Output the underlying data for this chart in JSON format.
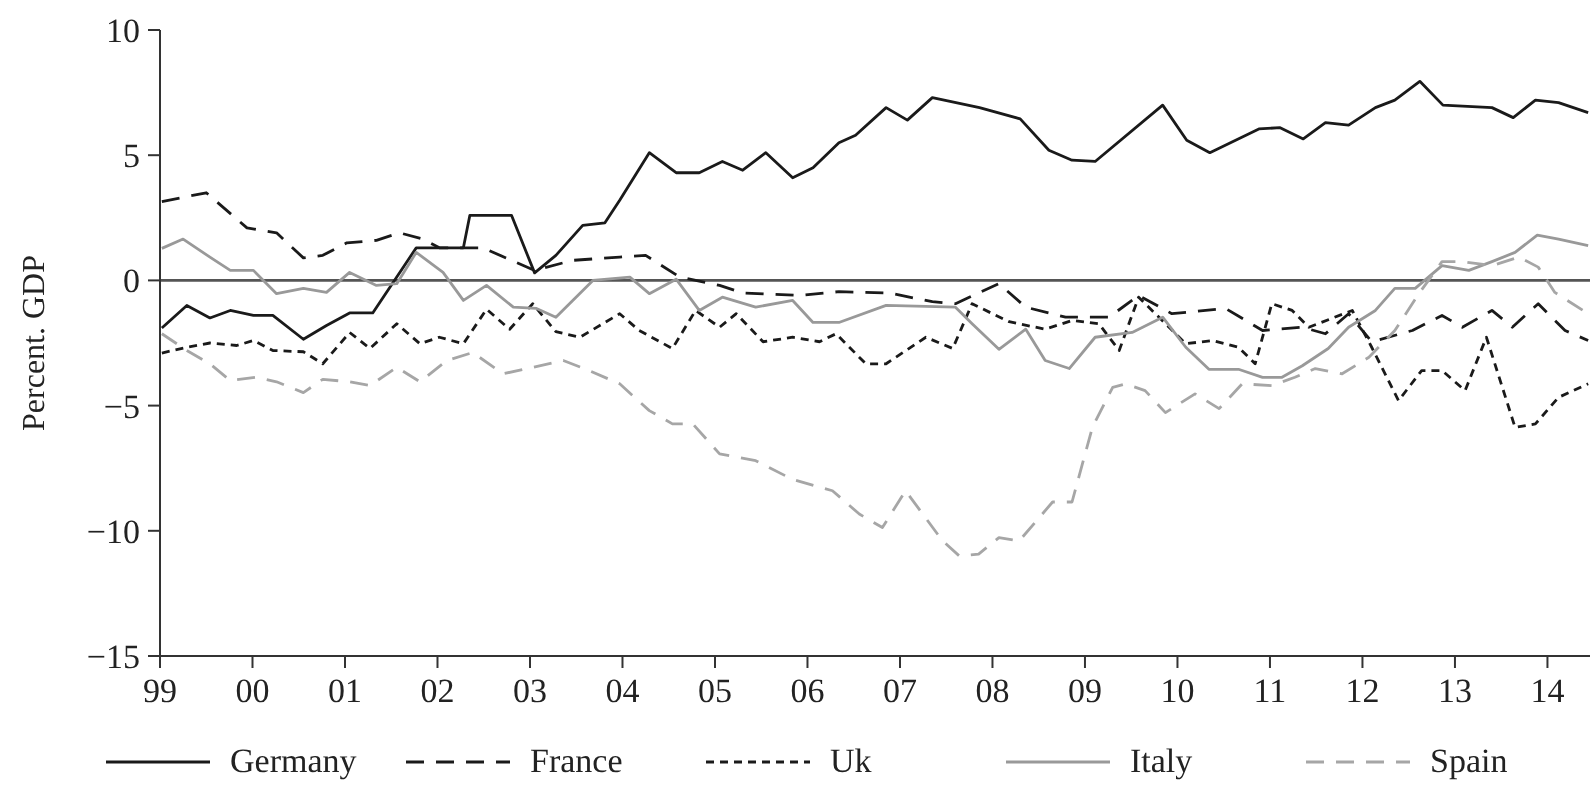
{
  "chart_data": {
    "type": "line",
    "ylabel": "Percent. GDP",
    "xlim": [
      1999,
      2014.46
    ],
    "ylim": [
      -15,
      10
    ],
    "xticks": [
      {
        "value": 1999,
        "label": "99"
      },
      {
        "value": 2000,
        "label": "00"
      },
      {
        "value": 2001,
        "label": "01"
      },
      {
        "value": 2002,
        "label": "02"
      },
      {
        "value": 2003,
        "label": "03"
      },
      {
        "value": 2004,
        "label": "04"
      },
      {
        "value": 2005,
        "label": "05"
      },
      {
        "value": 2006,
        "label": "06"
      },
      {
        "value": 2007,
        "label": "07"
      },
      {
        "value": 2008,
        "label": "08"
      },
      {
        "value": 2009,
        "label": "09"
      },
      {
        "value": 2010,
        "label": "10"
      },
      {
        "value": 2011,
        "label": "11"
      },
      {
        "value": 2012,
        "label": "12"
      },
      {
        "value": 2013,
        "label": "13"
      },
      {
        "value": 2014,
        "label": "14"
      }
    ],
    "yticks": [
      {
        "value": -15,
        "label": "−15"
      },
      {
        "value": -10,
        "label": "−10"
      },
      {
        "value": -5,
        "label": "−5"
      },
      0,
      5,
      10
    ],
    "grid": false,
    "legend": "bottom",
    "marker": "none",
    "ref_lines": [
      {
        "axis": "y",
        "value": 0,
        "color": "#555555"
      }
    ],
    "series": [
      {
        "name": "Germany",
        "color": "#1a1a1a",
        "line_style": "solid",
        "x": [
          1999.02,
          1999.29,
          1999.54,
          1999.76,
          2000.01,
          2000.22,
          2000.55,
          2000.8,
          2001.05,
          2001.3,
          2001.77,
          2002.02,
          2002.28,
          2002.35,
          2002.8,
          2003.05,
          2003.28,
          2003.57,
          2003.81,
          2003.97,
          2004.29,
          2004.58,
          2004.83,
          2005.08,
          2005.3,
          2005.55,
          2005.84,
          2006.06,
          2006.34,
          2006.52,
          2006.85,
          2007.08,
          2007.35,
          2007.86,
          2008.3,
          2008.61,
          2008.86,
          2009.11,
          2009.84,
          2010.1,
          2010.35,
          2010.88,
          2011.11,
          2011.36,
          2011.6,
          2011.85,
          2012.14,
          2012.35,
          2012.62,
          2012.87,
          2013.4,
          2013.63,
          2013.87,
          2014.12,
          2014.44
        ],
        "values": [
          -1.9,
          -1.0,
          -1.5,
          -1.2,
          -1.4,
          -1.4,
          -2.35,
          -1.8,
          -1.3,
          -1.3,
          1.3,
          1.3,
          1.3,
          2.6,
          2.6,
          0.3,
          1.0,
          2.2,
          2.3,
          3.2,
          5.1,
          4.3,
          4.3,
          4.75,
          4.4,
          5.1,
          4.1,
          4.5,
          5.5,
          5.8,
          6.9,
          6.4,
          7.3,
          6.9,
          6.45,
          5.2,
          4.8,
          4.75,
          7.0,
          5.6,
          5.1,
          6.05,
          6.1,
          5.65,
          6.3,
          6.2,
          6.9,
          7.2,
          7.95,
          7.0,
          6.9,
          6.5,
          7.2,
          7.1,
          6.7
        ]
      },
      {
        "name": "France",
        "color": "#1a1a1a",
        "line_style": "dashed",
        "x": [
          1999.02,
          1999.5,
          1999.94,
          2000.26,
          2000.55,
          2000.76,
          2001.02,
          2001.34,
          2001.59,
          2001.84,
          2002.02,
          2002.49,
          2003.05,
          2003.46,
          2003.97,
          2004.25,
          2004.62,
          2005.05,
          2005.3,
          2005.91,
          2006.34,
          2006.88,
          2007.35,
          2007.6,
          2008.07,
          2008.36,
          2008.79,
          2009.26,
          2009.58,
          2009.94,
          2010.52,
          2010.92,
          2011.35,
          2011.6,
          2011.85,
          2012.1,
          2012.54,
          2012.86,
          2013.08,
          2013.4,
          2013.62,
          2013.9,
          2014.19,
          2014.44
        ],
        "values": [
          3.15,
          3.5,
          2.1,
          1.9,
          0.9,
          1.0,
          1.5,
          1.6,
          1.9,
          1.65,
          1.3,
          1.3,
          0.4,
          0.8,
          0.93,
          1.0,
          0.13,
          -0.2,
          -0.5,
          -0.6,
          -0.45,
          -0.5,
          -0.85,
          -0.93,
          -0.13,
          -1.07,
          -1.47,
          -1.47,
          -0.6,
          -1.33,
          -1.12,
          -2.0,
          -1.87,
          -2.13,
          -1.33,
          -2.45,
          -2.0,
          -1.4,
          -1.87,
          -1.2,
          -1.87,
          -0.93,
          -2.0,
          -2.4
        ]
      },
      {
        "name": "Uk",
        "color": "#1a1a1a",
        "line_style": "dotted",
        "x": [
          1999.02,
          1999.29,
          1999.54,
          1999.83,
          2000.01,
          2000.22,
          2000.55,
          2000.76,
          2001.05,
          2001.27,
          2001.56,
          2001.81,
          2002.02,
          2002.28,
          2002.53,
          2002.78,
          2003.03,
          2003.28,
          2003.54,
          2003.97,
          2004.18,
          2004.54,
          2004.79,
          2005.05,
          2005.23,
          2005.52,
          2005.84,
          2006.13,
          2006.31,
          2006.63,
          2006.85,
          2007.28,
          2007.57,
          2007.78,
          2008.0,
          2008.18,
          2008.57,
          2008.86,
          2009.15,
          2009.37,
          2009.58,
          2010.09,
          2010.38,
          2010.66,
          2010.84,
          2011.02,
          2011.24,
          2011.42,
          2011.89,
          2012.1,
          2012.39,
          2012.64,
          2012.86,
          2013.11,
          2013.34,
          2013.65,
          2013.87,
          2014.12,
          2014.44
        ],
        "values": [
          -2.9,
          -2.67,
          -2.5,
          -2.6,
          -2.4,
          -2.8,
          -2.85,
          -3.33,
          -2.08,
          -2.72,
          -1.73,
          -2.53,
          -2.27,
          -2.53,
          -1.15,
          -1.95,
          -0.93,
          -2.05,
          -2.27,
          -1.33,
          -2.0,
          -2.72,
          -1.2,
          -1.87,
          -1.33,
          -2.45,
          -2.27,
          -2.45,
          -2.13,
          -3.33,
          -3.33,
          -2.27,
          -2.72,
          -0.93,
          -1.33,
          -1.65,
          -1.95,
          -1.6,
          -1.73,
          -2.8,
          -0.67,
          -2.53,
          -2.4,
          -2.67,
          -3.33,
          -0.93,
          -1.2,
          -1.87,
          -1.2,
          -2.67,
          -4.8,
          -3.6,
          -3.6,
          -4.4,
          -2.27,
          -5.87,
          -5.73,
          -4.67,
          -4.13
        ]
      },
      {
        "name": "Italy",
        "color": "#999999",
        "line_style": "solid",
        "x": [
          1999.02,
          1999.25,
          1999.54,
          1999.76,
          2000.01,
          2000.26,
          2000.55,
          2000.8,
          2001.05,
          2001.34,
          2001.56,
          2001.77,
          2002.06,
          2002.28,
          2002.53,
          2002.82,
          2003.07,
          2003.28,
          2003.68,
          2004.08,
          2004.29,
          2004.58,
          2004.83,
          2005.08,
          2005.44,
          2005.84,
          2006.06,
          2006.34,
          2006.85,
          2007.6,
          2007.78,
          2008.07,
          2008.36,
          2008.57,
          2008.83,
          2009.11,
          2009.51,
          2009.84,
          2010.09,
          2010.34,
          2010.66,
          2010.92,
          2011.13,
          2011.35,
          2011.63,
          2011.85,
          2012.14,
          2012.35,
          2012.57,
          2012.86,
          2013.15,
          2013.4,
          2013.65,
          2013.89,
          2014.12,
          2014.44
        ],
        "values": [
          1.28,
          1.65,
          0.93,
          0.4,
          0.4,
          -0.53,
          -0.32,
          -0.48,
          0.32,
          -0.2,
          -0.13,
          1.12,
          0.32,
          -0.8,
          -0.2,
          -1.07,
          -1.12,
          -1.47,
          0,
          0.13,
          -0.53,
          0.05,
          -1.2,
          -0.67,
          -1.07,
          -0.8,
          -1.68,
          -1.68,
          -1.0,
          -1.07,
          -1.73,
          -2.75,
          -1.95,
          -3.2,
          -3.52,
          -2.27,
          -2.08,
          -1.47,
          -2.67,
          -3.55,
          -3.55,
          -3.87,
          -3.87,
          -3.41,
          -2.72,
          -1.87,
          -1.2,
          -0.32,
          -0.32,
          0.59,
          0.4,
          0.75,
          1.12,
          1.81,
          1.65,
          1.39
        ]
      },
      {
        "name": "Spain",
        "color": "#a6a6a6",
        "line_style": "dashed",
        "x": [
          1999.02,
          1999.29,
          1999.54,
          1999.76,
          2000.04,
          2000.26,
          2000.55,
          2000.76,
          2001.05,
          2001.27,
          2001.56,
          2001.81,
          2002.1,
          2002.38,
          2002.71,
          2003.03,
          2003.36,
          2003.64,
          2003.97,
          2004.29,
          2004.54,
          2004.76,
          2005.05,
          2005.44,
          2005.84,
          2006.27,
          2006.56,
          2006.81,
          2007.06,
          2007.46,
          2007.64,
          2007.85,
          2008.07,
          2008.29,
          2008.65,
          2008.86,
          2009.08,
          2009.3,
          2009.44,
          2009.65,
          2009.87,
          2010.19,
          2010.45,
          2010.7,
          2011.02,
          2011.27,
          2011.49,
          2011.78,
          2012.07,
          2012.35,
          2012.61,
          2012.86,
          2013.08,
          2013.4,
          2013.69,
          2013.9,
          2014.08,
          2014.44
        ],
        "values": [
          -2.13,
          -2.8,
          -3.33,
          -4.0,
          -3.87,
          -4.05,
          -4.48,
          -3.95,
          -4.05,
          -4.2,
          -3.47,
          -4.05,
          -3.2,
          -2.88,
          -3.73,
          -3.47,
          -3.2,
          -3.6,
          -4.13,
          -5.2,
          -5.73,
          -5.73,
          -6.93,
          -7.2,
          -7.95,
          -8.4,
          -9.33,
          -9.87,
          -8.4,
          -10.4,
          -11.0,
          -10.93,
          -10.27,
          -10.4,
          -8.85,
          -8.85,
          -5.87,
          -4.27,
          -4.13,
          -4.4,
          -5.28,
          -4.53,
          -5.12,
          -4.13,
          -4.2,
          -3.87,
          -3.52,
          -3.73,
          -3.07,
          -2.0,
          -0.53,
          0.75,
          0.75,
          0.59,
          0.93,
          0.53,
          -0.48,
          -1.33
        ]
      }
    ]
  }
}
